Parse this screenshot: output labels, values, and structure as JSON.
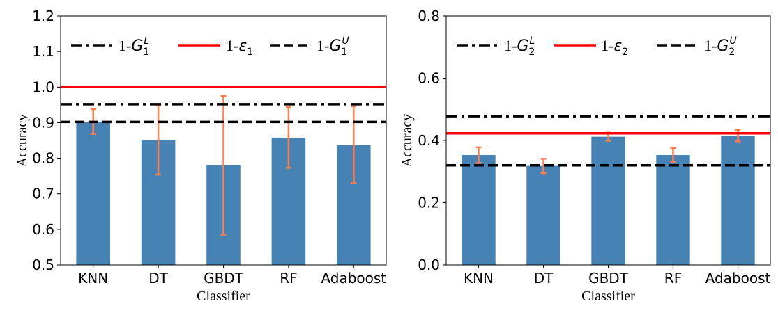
{
  "chart_data": [
    {
      "type": "bar",
      "title": "",
      "xlabel": "Classifier",
      "ylabel": "Accuracy",
      "categories": [
        "KNN",
        "DT",
        "GBDT",
        "RF",
        "Adaboost"
      ],
      "values": [
        0.903,
        0.852,
        0.78,
        0.858,
        0.838
      ],
      "errors": [
        0.035,
        0.098,
        0.195,
        0.085,
        0.108
      ],
      "ylim": [
        0.5,
        1.2
      ],
      "yticks": [
        "0.5",
        "0.6",
        "0.7",
        "0.8",
        "0.9",
        "1.0",
        "1.1",
        "1.2"
      ],
      "bar_color": "#4682B4",
      "error_color": "#FF7F50",
      "hlines": [
        {
          "name_prefix": "1-",
          "name_symbol": "G",
          "sub": "1",
          "sup": "L",
          "value": 0.952,
          "style": "dashdot",
          "color": "#000000"
        },
        {
          "name_prefix": "1-",
          "name_symbol": "ε",
          "sub": "1",
          "sup": "",
          "value": 1.0,
          "style": "solid",
          "color": "#FF0000"
        },
        {
          "name_prefix": "1-",
          "name_symbol": "G",
          "sub": "1",
          "sup": "U",
          "value": 0.902,
          "style": "dashed",
          "color": "#000000"
        }
      ],
      "legend_position": "top",
      "grid": false
    },
    {
      "type": "bar",
      "title": "",
      "xlabel": "Classifier",
      "ylabel": "Accuracy",
      "categories": [
        "KNN",
        "DT",
        "GBDT",
        "RF",
        "Adaboost"
      ],
      "values": [
        0.353,
        0.318,
        0.412,
        0.353,
        0.415
      ],
      "errors": [
        0.025,
        0.023,
        0.013,
        0.023,
        0.018
      ],
      "ylim": [
        0.0,
        0.8
      ],
      "yticks": [
        "0.0",
        "0.2",
        "0.4",
        "0.6",
        "0.8"
      ],
      "bar_color": "#4682B4",
      "error_color": "#FF7F50",
      "hlines": [
        {
          "name_prefix": "1-",
          "name_symbol": "G",
          "sub": "2",
          "sup": "L",
          "value": 0.478,
          "style": "dashdot",
          "color": "#000000"
        },
        {
          "name_prefix": "1-",
          "name_symbol": "ε",
          "sub": "2",
          "sup": "",
          "value": 0.423,
          "style": "solid",
          "color": "#FF0000"
        },
        {
          "name_prefix": "1-",
          "name_symbol": "G",
          "sub": "2",
          "sup": "U",
          "value": 0.32,
          "style": "dashed",
          "color": "#000000"
        }
      ],
      "legend_position": "top",
      "grid": false
    }
  ]
}
